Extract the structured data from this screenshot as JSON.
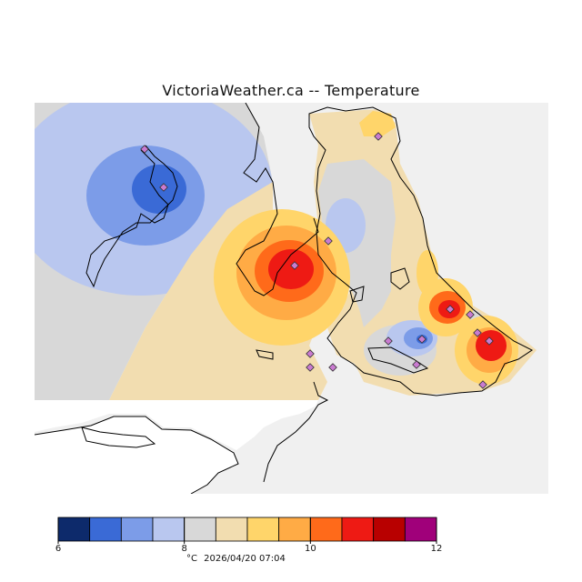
{
  "title": "VictoriaWeather.ca -- Temperature",
  "legend": {
    "colors": [
      "#0d2a6b",
      "#3a6ad6",
      "#7c9ce8",
      "#b9c7ef",
      "#d8d8d8",
      "#f2ddb0",
      "#ffd56a",
      "#ffab45",
      "#ff6a1a",
      "#ee1a14",
      "#b80000",
      "#a0007a"
    ],
    "ticks": [
      "6",
      "8",
      "10",
      "12"
    ],
    "unit": "°C",
    "timestamp": "2026/04/20 07:04"
  },
  "colors": {
    "background_land": "#f0f0f0",
    "station_marker": "#c97bd0"
  }
}
